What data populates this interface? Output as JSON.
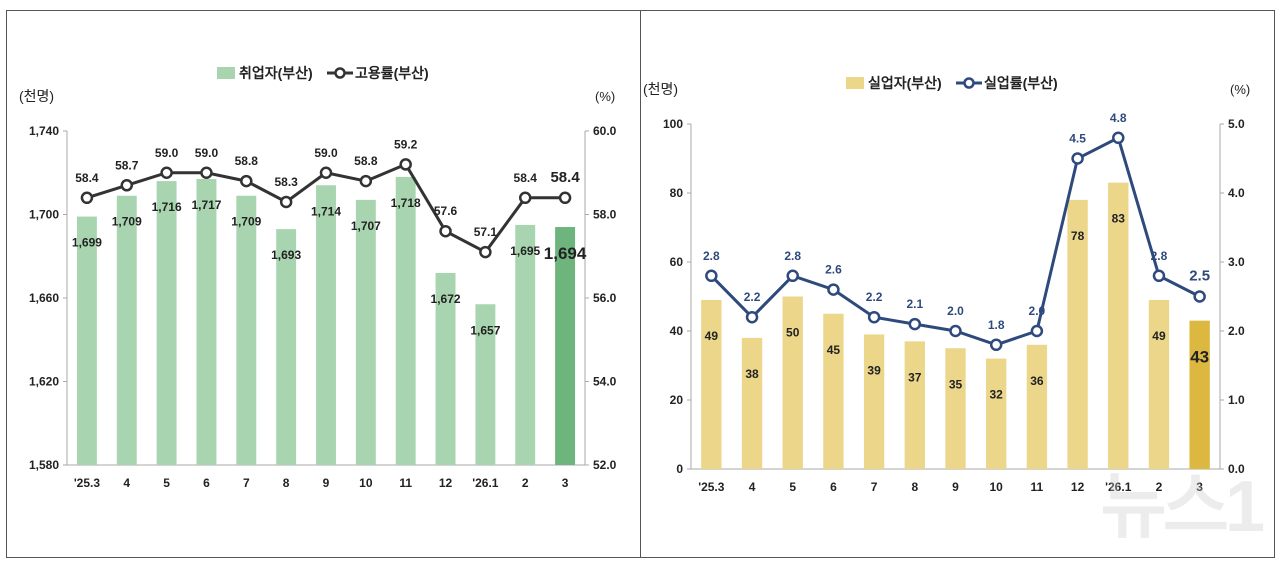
{
  "chart_data": [
    {
      "type": "bar+line",
      "categories": [
        "'25.3",
        "4",
        "5",
        "6",
        "7",
        "8",
        "9",
        "10",
        "11",
        "12",
        "'26.1",
        "2",
        "3"
      ],
      "y_left_label": "(천명)",
      "y_right_label": "(%)",
      "y_left_lim": [
        1580,
        1740
      ],
      "y_left_ticks": [
        "1,580",
        "1,620",
        "1,660",
        "1,700",
        "1,740"
      ],
      "y_right_lim": [
        52.0,
        60.0
      ],
      "y_right_ticks": [
        "52.0",
        "54.0",
        "56.0",
        "58.0",
        "60.0"
      ],
      "legend_placement": "top-center",
      "grid": false,
      "series": [
        {
          "name": "취업자(부산)",
          "type": "bar",
          "axis": "left",
          "color": "#a8d5b0",
          "highlight_color": "#6db57c",
          "values": [
            1699,
            1709,
            1716,
            1717,
            1709,
            1693,
            1714,
            1707,
            1718,
            1672,
            1657,
            1695,
            1694
          ],
          "labels": [
            "1,699",
            "1,709",
            "1,716",
            "1,717",
            "1,709",
            "1,693",
            "1,714",
            "1,707",
            "1,718",
            "1,672",
            "1,657",
            "1,695",
            "1,694"
          ]
        },
        {
          "name": "고용률(부산)",
          "type": "line",
          "axis": "right",
          "color": "#333333",
          "values": [
            58.4,
            58.7,
            59.0,
            59.0,
            58.8,
            58.3,
            59.0,
            58.8,
            59.2,
            57.6,
            57.1,
            58.4,
            58.4
          ],
          "labels": [
            "58.4",
            "58.7",
            "59.0",
            "59.0",
            "58.8",
            "58.3",
            "59.0",
            "58.8",
            "59.2",
            "57.6",
            "57.1",
            "58.4",
            "58.4"
          ]
        }
      ]
    },
    {
      "type": "bar+line",
      "categories": [
        "'25.3",
        "4",
        "5",
        "6",
        "7",
        "8",
        "9",
        "10",
        "11",
        "12",
        "'26.1",
        "2",
        "3"
      ],
      "y_left_label": "(천명)",
      "y_right_label": "(%)",
      "y_left_lim": [
        0,
        100
      ],
      "y_left_ticks": [
        "0",
        "20",
        "40",
        "60",
        "80",
        "100"
      ],
      "y_right_lim": [
        0.0,
        5.0
      ],
      "y_right_ticks": [
        "0.0",
        "1.0",
        "2.0",
        "3.0",
        "4.0",
        "5.0"
      ],
      "legend_placement": "top-center",
      "grid": false,
      "series": [
        {
          "name": "실업자(부산)",
          "type": "bar",
          "axis": "left",
          "color": "#ecd68a",
          "highlight_color": "#dcb840",
          "values": [
            49,
            38,
            50,
            45,
            39,
            37,
            35,
            32,
            36,
            78,
            83,
            49,
            43
          ],
          "labels": [
            "49",
            "38",
            "50",
            "45",
            "39",
            "37",
            "35",
            "32",
            "36",
            "78",
            "83",
            "49",
            "43"
          ]
        },
        {
          "name": "실업률(부산)",
          "type": "line",
          "axis": "right",
          "color": "#2e4a7d",
          "values": [
            2.8,
            2.2,
            2.8,
            2.6,
            2.2,
            2.1,
            2.0,
            1.8,
            2.0,
            4.5,
            4.8,
            2.8,
            2.5
          ],
          "labels": [
            "2.8",
            "2.2",
            "2.8",
            "2.6",
            "2.2",
            "2.1",
            "2.0",
            "1.8",
            "2.0",
            "4.5",
            "4.8",
            "2.8",
            "2.5"
          ]
        }
      ]
    }
  ],
  "watermark": "뉴스1"
}
